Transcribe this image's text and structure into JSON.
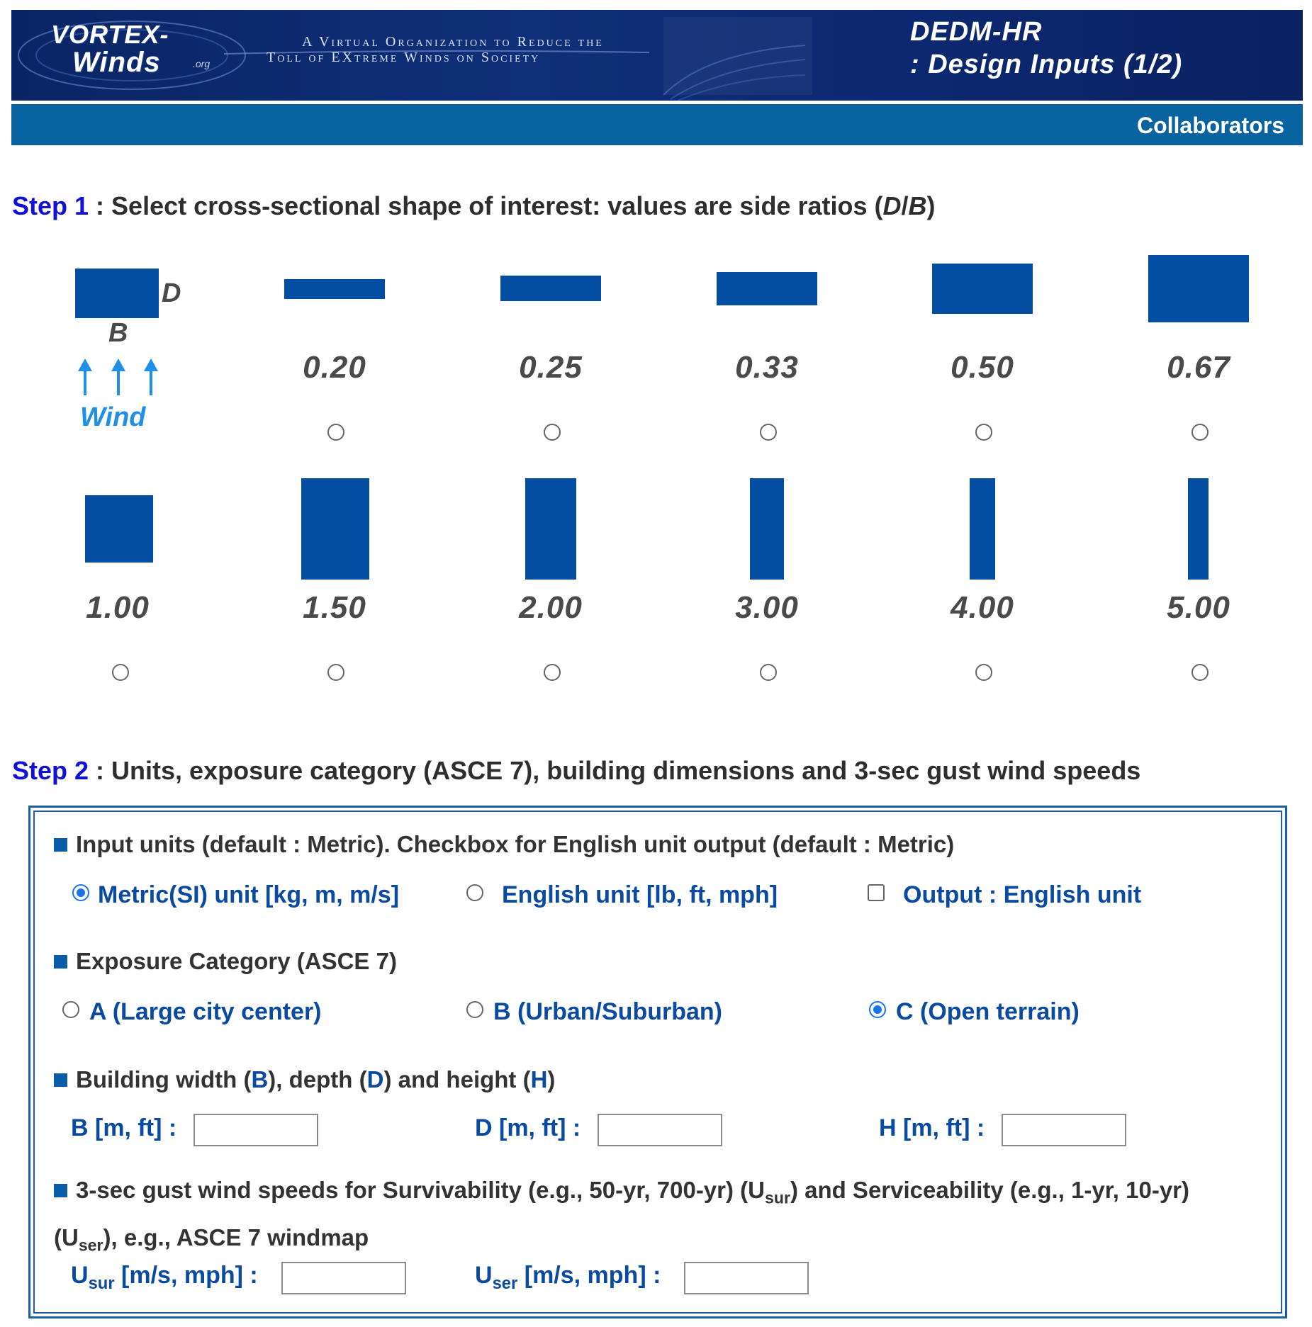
{
  "header": {
    "logo_line1": "VORTEX-",
    "logo_line2": "Winds",
    "logo_org": ".org",
    "tagline_line1": "A Virtual Organization to Reduce the",
    "tagline_line2": "Toll of EXtreme Winds on Society",
    "title_line1": "DEDM-HR",
    "title_line2": ": Design Inputs (1/2)"
  },
  "nav": {
    "collaborators": "Collaborators"
  },
  "step1": {
    "step_label": "Step 1",
    "text": " : Select cross-sectional shape of interest: values are side ratios (",
    "ratio_d": "D",
    "ratio_slash": "/",
    "ratio_b": "B",
    "text_end": ")",
    "legend": {
      "d_label": "D",
      "b_label": "B",
      "wind_label": "Wind"
    },
    "row1": [
      "0.20",
      "0.25",
      "0.33",
      "0.50",
      "0.67"
    ],
    "row2": [
      "1.00",
      "1.50",
      "2.00",
      "3.00",
      "4.00",
      "5.00"
    ]
  },
  "step2": {
    "step_label": "Step 2",
    "text": " : Units, exposure category (ASCE 7), building dimensions and 3-sec gust wind speeds",
    "units": {
      "heading": "Input units (default : Metric). Checkbox for English unit output (default : Metric)",
      "metric": "Metric(SI) unit [kg, m, m/s]",
      "english": "English unit [lb, ft, mph]",
      "output": "Output : English unit",
      "selected": "metric",
      "output_checked": false
    },
    "exposure": {
      "heading": "Exposure Category (ASCE 7)",
      "a": "A (Large city center)",
      "b": "B (Urban/Suburban)",
      "c": "C (Open terrain)",
      "selected": "c"
    },
    "dimensions": {
      "heading_pre": "Building width (",
      "b": "B",
      "heading_mid1": "), depth (",
      "d": "D",
      "heading_mid2": ") and height (",
      "h": "H",
      "heading_end": ")",
      "b_label": "B [m, ft] :",
      "d_label": "D [m, ft] :",
      "h_label": "H [m, ft] :",
      "b_value": "",
      "d_value": "",
      "h_value": ""
    },
    "wind": {
      "heading_1": "3-sec gust wind speeds for Survivability (e.g., 50-yr, 700-yr) (U",
      "heading_sub1": "sur",
      "heading_2": ") and Serviceability (e.g., 1-yr, 10-yr) (U",
      "heading_sub2": "ser",
      "heading_3": "), e.g., ASCE 7 windmap",
      "usur_U": "U",
      "usur_sub": "sur",
      "usur_units": " [m/s, mph] :",
      "user_U": "U",
      "user_sub": "ser",
      "user_units": " [m/s, mph] :",
      "usur_value": "",
      "user_value": ""
    }
  },
  "colors": {
    "banner": "#0f2f78",
    "navbar": "#0a63a1",
    "shape": "#034ea2",
    "step_label": "#1111d6",
    "option_text": "#0a4aa0",
    "wind": "#1f8fe8"
  }
}
